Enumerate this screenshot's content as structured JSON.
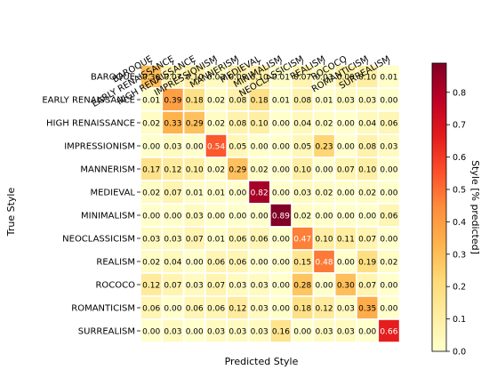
{
  "chart_data": {
    "type": "heatmap",
    "title": "",
    "xlabel": "Predicted Style",
    "ylabel": "True Style",
    "categories": [
      "BAROQUE",
      "EARLY RENAISSANCE",
      "HIGH RENAISSANCE",
      "IMPRESSIONISM",
      "MANNERISM",
      "MEDIEVAL",
      "MINIMALISM",
      "NEOCLASSICISM",
      "REALISM",
      "ROCOCO",
      "ROMANTICISM",
      "SURREALISM"
    ],
    "values": [
      [
        0.3,
        0.07,
        0.1,
        0.03,
        0.09,
        0.1,
        0.01,
        0.07,
        0.03,
        0.09,
        0.1,
        0.01
      ],
      [
        0.01,
        0.39,
        0.18,
        0.02,
        0.08,
        0.18,
        0.01,
        0.08,
        0.01,
        0.03,
        0.03,
        0.0
      ],
      [
        0.02,
        0.33,
        0.29,
        0.02,
        0.08,
        0.1,
        0.0,
        0.04,
        0.02,
        0.0,
        0.04,
        0.06
      ],
      [
        0.0,
        0.03,
        0.0,
        0.54,
        0.05,
        0.0,
        0.0,
        0.05,
        0.23,
        0.0,
        0.08,
        0.03
      ],
      [
        0.17,
        0.12,
        0.1,
        0.02,
        0.29,
        0.02,
        0.0,
        0.1,
        0.0,
        0.07,
        0.1,
        0.0
      ],
      [
        0.02,
        0.07,
        0.01,
        0.01,
        0.0,
        0.82,
        0.0,
        0.03,
        0.02,
        0.0,
        0.02,
        0.0
      ],
      [
        0.0,
        0.0,
        0.03,
        0.0,
        0.0,
        0.0,
        0.89,
        0.02,
        0.0,
        0.0,
        0.0,
        0.06
      ],
      [
        0.03,
        0.03,
        0.07,
        0.01,
        0.06,
        0.06,
        0.0,
        0.47,
        0.1,
        0.11,
        0.07,
        0.0
      ],
      [
        0.02,
        0.04,
        0.0,
        0.06,
        0.06,
        0.0,
        0.0,
        0.15,
        0.48,
        0.0,
        0.19,
        0.02
      ],
      [
        0.12,
        0.07,
        0.03,
        0.07,
        0.03,
        0.03,
        0.0,
        0.28,
        0.0,
        0.3,
        0.07,
        0.0
      ],
      [
        0.06,
        0.0,
        0.06,
        0.06,
        0.12,
        0.03,
        0.0,
        0.18,
        0.12,
        0.03,
        0.35,
        0.0
      ],
      [
        0.0,
        0.03,
        0.0,
        0.03,
        0.03,
        0.03,
        0.16,
        0.0,
        0.03,
        0.03,
        0.0,
        0.66
      ]
    ],
    "colorbar": {
      "label": "Style [% predicted]",
      "range": [
        0.0,
        0.89
      ],
      "ticks": [
        0.0,
        0.1,
        0.2,
        0.3,
        0.4,
        0.5,
        0.6,
        0.7,
        0.8
      ],
      "tick_labels": [
        "0.0",
        "0.1",
        "0.2",
        "0.3",
        "0.4",
        "0.5",
        "0.6",
        "0.7",
        "0.8"
      ],
      "colormap": "YlOrRd"
    },
    "colors": {
      "low": "#ffffcc",
      "high": "#800026",
      "grid": "#ffffff"
    }
  }
}
